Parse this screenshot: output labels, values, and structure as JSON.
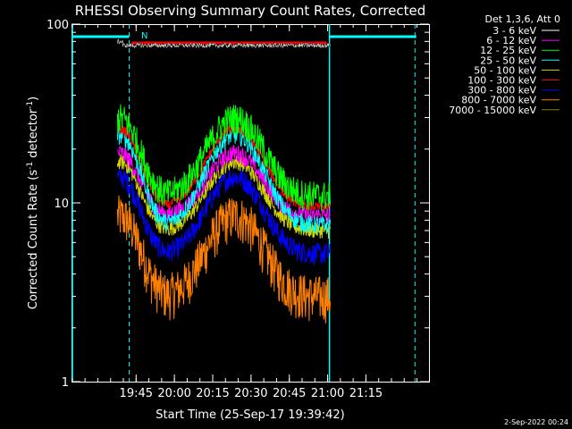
{
  "chart_data": {
    "type": "line",
    "title": "RHESSI Observing Summary Count Rates, Corrected",
    "xlabel": "Start Time (25-Sep-17 19:39:42)",
    "ylabel_main": "Corrected Count Rate (s",
    "ylabel_sup1": "-1",
    "ylabel_mid": " detector",
    "ylabel_sup2": "-1",
    "ylabel_end": ")",
    "y_scale": "log",
    "ylim": [
      1,
      100
    ],
    "xlim_minutes": [
      -20,
      120
    ],
    "x_ticks": [
      {
        "m": 5.3,
        "label": "19:45"
      },
      {
        "m": 20.3,
        "label": "20:00"
      },
      {
        "m": 35.3,
        "label": "20:15"
      },
      {
        "m": 50.3,
        "label": "20:30"
      },
      {
        "m": 65.3,
        "label": "20:45"
      },
      {
        "m": 80.3,
        "label": "21:00"
      },
      {
        "m": 95.3,
        "label": "21:15"
      }
    ],
    "y_ticks": [
      {
        "v": 1,
        "label": "1"
      },
      {
        "v": 10,
        "label": "10"
      },
      {
        "v": 100,
        "label": "100"
      }
    ],
    "legend_title": "Det 1,3,6, Att 0",
    "legend_placement": "right",
    "series": [
      {
        "name": "3 - 6 keV",
        "color": "#000000",
        "base": 76,
        "peak": 76,
        "noise": 0.03,
        "x": [
          -2,
          81.5
        ]
      },
      {
        "name": "6 - 12 keV",
        "color": "#ff00ff",
        "base": 8.5,
        "peak": 19,
        "noise": 0.12,
        "x": [
          -2,
          81.5
        ]
      },
      {
        "name": "12 - 25 keV",
        "color": "#00ff00",
        "base": 11,
        "peak": 30,
        "noise": 0.2,
        "x": [
          -2,
          81.5
        ]
      },
      {
        "name": "25 - 50 keV",
        "color": "#00ffff",
        "base": 7.5,
        "peak": 24,
        "noise": 0.12,
        "x": [
          -2,
          81.5
        ]
      },
      {
        "name": "50 - 100 keV",
        "color": "#d4d400",
        "base": 7,
        "peak": 17,
        "noise": 0.1,
        "x": [
          -2,
          81.5
        ]
      },
      {
        "name": "100 - 300 keV",
        "color": "#ff0000",
        "base": 9.5,
        "peak": 26,
        "noise": 0.06,
        "x": [
          -2,
          81.5
        ]
      },
      {
        "name": "300 - 800 keV",
        "color": "#0000ff",
        "base": 5.2,
        "peak": 14,
        "noise": 0.14,
        "x": [
          -2,
          81.5
        ]
      },
      {
        "name": "800 - 7000 keV",
        "color": "#ff8000",
        "base": 3.0,
        "peak": 8.5,
        "noise": 0.3,
        "x": [
          -2,
          81.5
        ]
      },
      {
        "name": "7000 - 15000 keV",
        "color": "#808000",
        "base": 0,
        "peak": 0,
        "noise": 0,
        "x": []
      }
    ],
    "annotations": [
      {
        "label": "N",
        "type": "night-bar",
        "color": "#00ffff"
      }
    ]
  },
  "footer": {
    "timestamp": "2-Sep-2022 00:24"
  }
}
